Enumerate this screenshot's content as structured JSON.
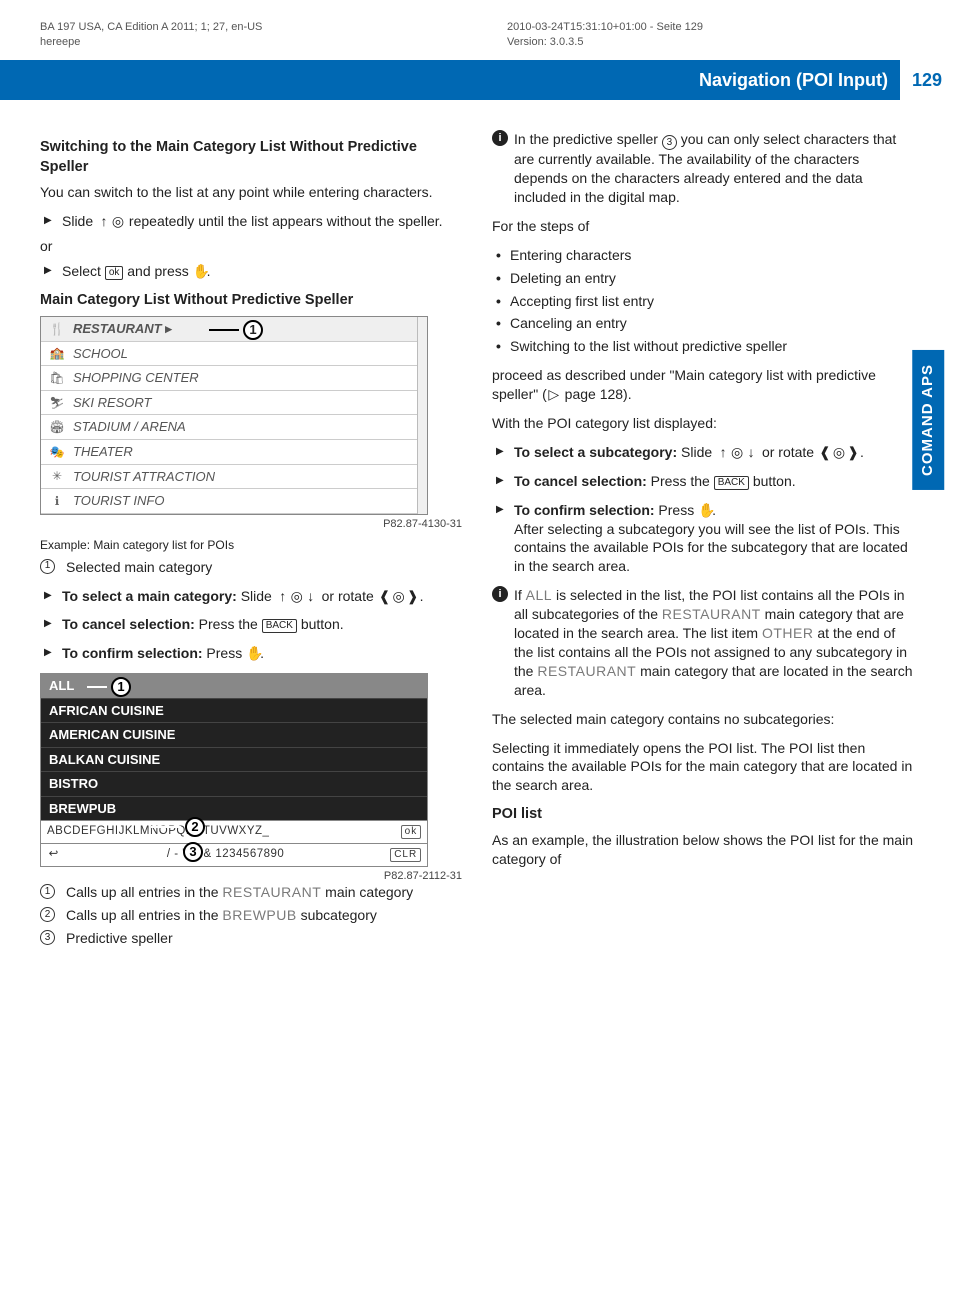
{
  "meta": {
    "left_line1": "BA 197 USA, CA Edition A 2011; 1; 27, en-US",
    "left_line2": "hereepe",
    "right_line1": "2010-03-24T15:31:10+01:00 - Seite 129",
    "right_line2": "Version: 3.0.3.5"
  },
  "header": {
    "title": "Navigation (POI Input)",
    "page": "129"
  },
  "side_tab": "COMAND APS",
  "left": {
    "h1": "Switching to the Main Category List Without Predictive Speller",
    "p1": "You can switch to the list at any point while entering characters.",
    "step1_pre": "Slide ",
    "step1_post": " repeatedly until the list appears without the speller.",
    "or": "or",
    "step2_pre": "Select ",
    "step2_mid": " and press ",
    "step2_end": ".",
    "h2": "Main Category List Without Predictive Speller",
    "fig1_items": [
      {
        "icon": "🍴",
        "label": "RESTAURANT"
      },
      {
        "icon": "🏫",
        "label": "SCHOOL"
      },
      {
        "icon": "🛍",
        "label": "SHOPPING CENTER"
      },
      {
        "icon": "⛷",
        "label": "SKI RESORT"
      },
      {
        "icon": "🏟",
        "label": "STADIUM / ARENA"
      },
      {
        "icon": "🎭",
        "label": "THEATER"
      },
      {
        "icon": "✳",
        "label": "TOURIST ATTRACTION"
      },
      {
        "icon": "ℹ",
        "label": "TOURIST INFO"
      }
    ],
    "fig1_id": "P82.87-4130-31",
    "caption1": "Example: Main category list for POIs",
    "legend1": "Selected main category",
    "select_main_pre": "To select a main category:",
    "select_main_mid": " Slide ",
    "select_main_end": " or rotate ",
    "select_main_tail": ".",
    "cancel_pre": "To cancel selection:",
    "cancel_mid": " Press the ",
    "cancel_end": " button.",
    "confirm_pre": "To confirm selection:",
    "confirm_mid": " Press ",
    "confirm_end": ".",
    "fig2_all": "ALL",
    "fig2_items": [
      "AFRICAN CUISINE",
      "AMERICAN CUISINE",
      "BALKAN CUISINE",
      "BISTRO",
      "BREWPUB"
    ],
    "fig2_row1": "ABCDEFGHIJKLMNOPQRSTUVWXYZ_",
    "fig2_row2": "/ - ' . , & 1234567890",
    "fig2_id": "P82.87-2112-31",
    "leg2_1a": "Calls up all entries in the ",
    "leg2_1b": "RESTAURANT",
    "leg2_1c": " main category",
    "leg2_2a": "Calls up all entries in the ",
    "leg2_2b": "BREWPUB",
    "leg2_2c": " subcategory",
    "leg2_3": "Predictive speller"
  },
  "right": {
    "info1a": "In the predictive speller ",
    "info1b": " you can only select characters that are currently available. The availability of the characters depends on the characters already entered and the data included in the digital map.",
    "for_steps": "For the steps of",
    "bullets": [
      "Entering characters",
      "Deleting an entry",
      "Accepting first list entry",
      "Canceling an entry",
      "Switching to the list without predictive speller"
    ],
    "proceed_a": "proceed as described under \"Main category list with predictive speller\" (",
    "proceed_b": " page 128).",
    "with_poi": "With the POI category list displayed:",
    "sel_sub_pre": "To select a subcategory:",
    "sel_sub_mid": " Slide ",
    "sel_sub_mid2": " or rotate ",
    "sel_sub_end": ".",
    "cancel2_pre": "To cancel selection:",
    "cancel2_mid": " Press the ",
    "cancel2_end": " button.",
    "confirm2_pre": "To confirm selection:",
    "confirm2_mid": " Press ",
    "confirm2_end": ".",
    "confirm2_para": "After selecting a subcategory you will see the list of POIs. This contains the available POIs for the subcategory that are located in the search area.",
    "info2_a": "If ",
    "info2_b": "ALL",
    "info2_c": " is selected in the list, the POI list contains all the POIs in all subcategories of the ",
    "info2_d": "RESTAURANT",
    "info2_e": " main category that are located in the search area. The list item ",
    "info2_f": "OTHER",
    "info2_g": " at the end of the list contains all the POIs not assigned to any subcategory in the ",
    "info2_h": "RESTAURANT",
    "info2_i": " main category that are located in the search area.",
    "nosub": "The selected main category contains no subcategories:",
    "nosub_p": "Selecting it immediately opens the POI list. The POI list then contains the available POIs for the main category that are located in the search area.",
    "h_poi": "POI list",
    "poi_p": "As an example, the illustration below shows the POI list for the main category of"
  },
  "keys": {
    "ok": "ok",
    "back": "BACK",
    "clr": "CLR"
  },
  "syms": {
    "up": "↑",
    "down": "↓",
    "knob": "◎",
    "press": "✋",
    "rotL": "❰",
    "rotR": "❱",
    "tri": "▷",
    "ret": "↩"
  }
}
